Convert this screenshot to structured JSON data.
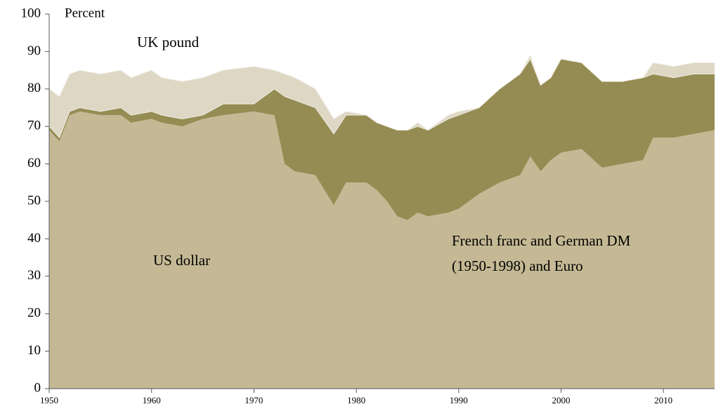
{
  "chart_data": {
    "type": "area",
    "stacked": true,
    "x": [
      1950,
      1951,
      1952,
      1953,
      1955,
      1957,
      1958,
      1960,
      1961,
      1963,
      1965,
      1967,
      1970,
      1972,
      1973,
      1974,
      1976,
      1977.8,
      1979,
      1981,
      1982,
      1983,
      1984,
      1985,
      1986,
      1987,
      1989,
      1990,
      1992,
      1994,
      1996,
      1997,
      1998,
      1999,
      2000,
      2002,
      2004,
      2006,
      2008,
      2009,
      2011,
      2013,
      2015
    ],
    "series": [
      {
        "color": "#c4b994",
        "values": [
          69,
          66,
          73,
          74,
          73,
          73,
          71,
          72,
          71,
          70,
          72,
          73,
          74,
          73,
          60,
          58,
          57,
          49,
          55,
          55,
          53,
          50,
          46,
          45,
          47,
          46,
          47,
          48,
          52,
          55,
          57,
          62,
          58,
          61,
          63,
          64,
          59,
          60,
          61,
          67,
          67,
          68,
          69
        ]
      },
      {
        "color": "#958c54",
        "values": [
          1,
          1,
          1,
          1,
          1,
          2,
          2,
          2,
          2,
          2,
          1,
          3,
          2,
          7,
          18,
          19,
          18,
          19,
          18,
          18,
          18,
          20,
          23,
          24,
          23,
          23,
          25,
          25,
          23,
          25,
          27,
          26,
          23,
          22,
          25,
          23,
          23,
          22,
          22,
          17,
          16,
          16,
          15
        ]
      },
      {
        "color": "#ddd7c4",
        "values": [
          10,
          11,
          10,
          10,
          10,
          10,
          10,
          11,
          10,
          10,
          10,
          9,
          10,
          5,
          6,
          6,
          5,
          4,
          1,
          0,
          0,
          0,
          0,
          0,
          1,
          0,
          1,
          1,
          0,
          0,
          0,
          1,
          0,
          0,
          0,
          0,
          0,
          0,
          0,
          3,
          3,
          3,
          3
        ]
      }
    ],
    "xlim": [
      1950,
      2015
    ],
    "xticks": [
      1950,
      1960,
      1970,
      1980,
      1990,
      2000,
      2010
    ],
    "ylim": [
      0,
      100
    ],
    "yticks": [
      0,
      10,
      20,
      30,
      40,
      50,
      60,
      70,
      80,
      90,
      100
    ],
    "annotations": [
      {
        "lines": [
          "Percent"
        ]
      },
      {
        "lines": [
          "UK pound"
        ]
      },
      {
        "lines": [
          "US dollar"
        ]
      },
      {
        "lines": [
          "French franc and German DM",
          "(1950-1998) and Euro"
        ]
      }
    ]
  }
}
